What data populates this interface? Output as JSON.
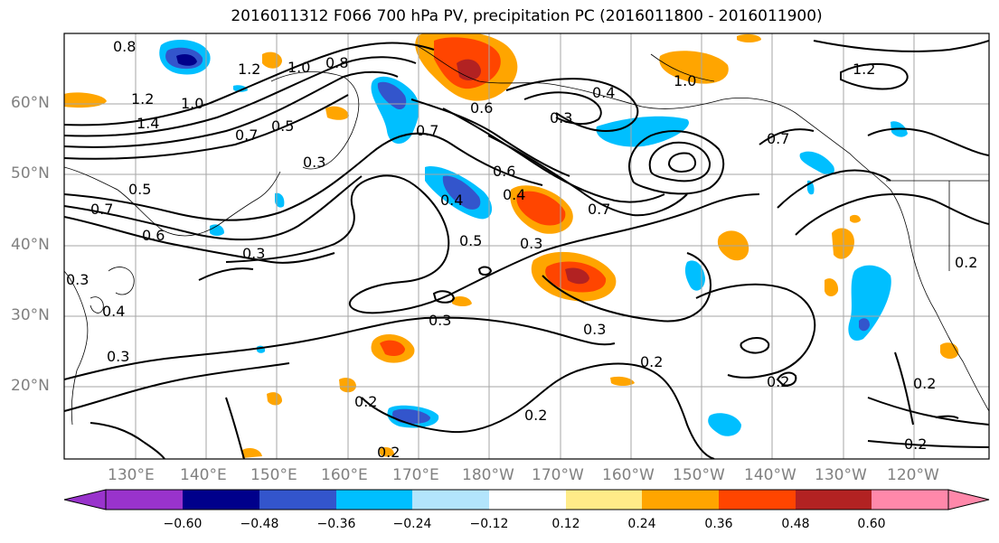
{
  "title": "2016011312 F066 700 hPa PV, precipitation PC (2016011800 - 2016011900)",
  "lat_labels": [
    "60°N",
    "50°N",
    "40°N",
    "30°N",
    "20°N"
  ],
  "lon_labels": [
    "130°E",
    "140°E",
    "150°E",
    "160°E",
    "170°E",
    "180°W",
    "170°W",
    "160°W",
    "150°W",
    "140°W",
    "130°W",
    "120°W"
  ],
  "colorbar": {
    "ticks": [
      "−0.60",
      "−0.48",
      "−0.36",
      "−0.24",
      "−0.12",
      "0.12",
      "0.24",
      "0.36",
      "0.48",
      "0.60"
    ],
    "colors": [
      "#9933cc",
      "#00008b",
      "#3355cc",
      "#00bfff",
      "#b3e5fc",
      "#ffffff",
      "#ffeb88",
      "#ffa500",
      "#ff4500",
      "#b22222",
      "#ff88aa"
    ]
  },
  "contour_labels": [
    "0.8",
    "1.2",
    "1.0",
    "0.8",
    "1.4",
    "1.2",
    "1.0",
    "0.7",
    "0.5",
    "0.3",
    "0.5",
    "0.7",
    "0.6",
    "0.3",
    "0.4",
    "0.3",
    "0.3",
    "0.4",
    "0.5",
    "0.3",
    "0.7",
    "0.6",
    "0.4",
    "0.3",
    "0.7",
    "0.3",
    "0.2",
    "0.2",
    "0.2",
    "0.3",
    "0.2",
    "0.2",
    "0.2",
    "0.2",
    "1.0",
    "1.2",
    "0.6",
    "0.7",
    "0.4",
    "0.2"
  ]
}
